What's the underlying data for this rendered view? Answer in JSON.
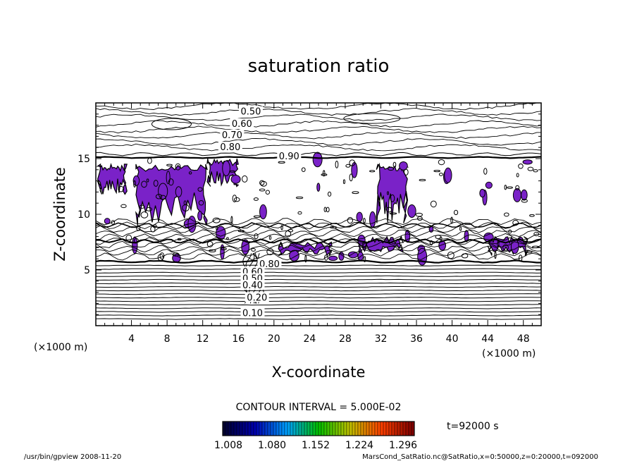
{
  "chart_data": {
    "type": "contour",
    "title": "saturation ratio",
    "xlabel": "X-coordinate",
    "ylabel": "Z-coordinate",
    "x_unit": "(×1000 m)",
    "z_unit": "(×1000 m)",
    "xlim": [
      0,
      50
    ],
    "zlim": [
      0,
      20
    ],
    "x_ticks": [
      4,
      8,
      12,
      16,
      20,
      24,
      28,
      32,
      36,
      40,
      44,
      48
    ],
    "z_ticks": [
      5,
      10,
      15
    ],
    "contour_interval_label": "CONTOUR INTERVAL = 5.000E-02",
    "contour_labels": [
      {
        "text": "0.50",
        "x": 17.4,
        "z": 19.2
      },
      {
        "text": "0.60",
        "x": 16.4,
        "z": 18.1
      },
      {
        "text": "0.70",
        "x": 15.3,
        "z": 17.1
      },
      {
        "text": "0.80",
        "x": 15.1,
        "z": 16.0
      },
      {
        "text": "0.90",
        "x": 21.7,
        "z": 15.2
      },
      {
        "text": "0.80",
        "x": 19.5,
        "z": 5.5
      },
      {
        "text": "0.60",
        "x": 17.6,
        "z": 4.8
      },
      {
        "text": "0.50",
        "x": 17.6,
        "z": 4.2
      },
      {
        "text": "0.40",
        "x": 17.6,
        "z": 3.6
      },
      {
        "text": "0.20",
        "x": 18.1,
        "z": 2.5
      },
      {
        "text": "0.10",
        "x": 17.6,
        "z": 1.1
      }
    ],
    "shaded_regions": {
      "color": "#7a22c8",
      "description_threshold": 1.0,
      "areas": [
        {
          "x": [
            4.5,
            12.5
          ],
          "z": [
            9.0,
            14.5
          ]
        },
        {
          "x": [
            0.2,
            3.5
          ],
          "z": [
            11.8,
            14.5
          ]
        },
        {
          "x": [
            12.5,
            16.0
          ],
          "z": [
            12.5,
            15.0
          ]
        },
        {
          "x": [
            31.5,
            35.0
          ],
          "z": [
            9.2,
            14.5
          ]
        },
        {
          "x": [
            20.5,
            26.5
          ],
          "z": [
            6.3,
            7.5
          ]
        },
        {
          "x": [
            29.5,
            34.5
          ],
          "z": [
            6.6,
            8.0
          ]
        },
        {
          "x": [
            44.0,
            48.5
          ],
          "z": [
            6.3,
            8.0
          ]
        }
      ]
    },
    "colorbar": {
      "ticks": [
        "1.008",
        "1.080",
        "1.152",
        "1.224",
        "1.296"
      ],
      "colors": [
        "#000030",
        "#0000b0",
        "#00a0ff",
        "#00c000",
        "#c0c000",
        "#ff4000",
        "#800000"
      ]
    },
    "time_label": "t=92000 s",
    "grid": false,
    "legend": "bottom-center"
  },
  "footer": {
    "left": "/usr/bin/gpview  2008-11-20",
    "right": "MarsCond_SatRatio.nc@SatRatio,x=0:50000,z=0:20000,t=092000"
  }
}
